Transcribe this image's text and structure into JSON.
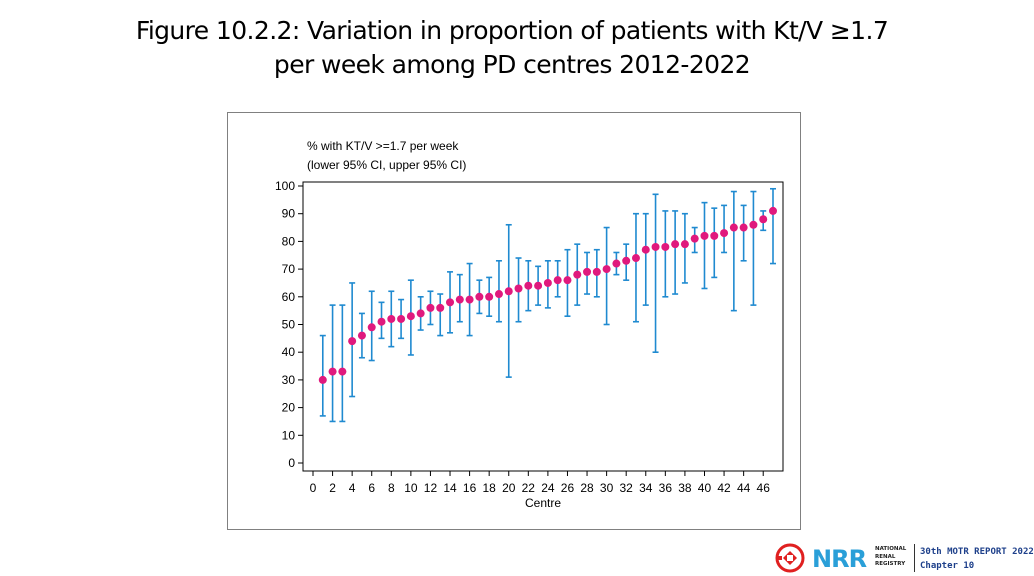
{
  "title": {
    "line1": "Figure 10.2.2: Variation in proportion of patients with Kt/V ≥1.7",
    "line2": "per week among PD centres 2012-2022"
  },
  "colors": {
    "point": "#e0197d",
    "ci": "#1f8ad0",
    "axis": "#000000",
    "frame": "#808080",
    "nrr_blue": "#2a9fd8",
    "nrr_red": "#e02020"
  },
  "footer": {
    "logo_text": "NRR",
    "logo_sub": [
      "NATIONAL",
      "RENAL",
      "REGISTRY"
    ],
    "report_line1": "30th MOTR REPORT 2022",
    "report_line2": "Chapter 10"
  },
  "chart_data": {
    "type": "scatter",
    "title": "",
    "ylabel_line1": "% with KT/V >=1.7 per week",
    "ylabel_line2": "(lower 95% CI, upper 95% CI)",
    "xlabel": "Centre",
    "xlim": [
      0,
      47
    ],
    "ylim": [
      0,
      100
    ],
    "x_ticks": [
      0,
      2,
      4,
      6,
      8,
      10,
      12,
      14,
      16,
      18,
      20,
      22,
      24,
      26,
      28,
      30,
      32,
      34,
      36,
      38,
      40,
      42,
      44,
      46
    ],
    "y_ticks": [
      0,
      10,
      20,
      30,
      40,
      50,
      60,
      70,
      80,
      90,
      100
    ],
    "x": [
      1,
      2,
      3,
      4,
      5,
      6,
      7,
      8,
      9,
      10,
      11,
      12,
      13,
      14,
      15,
      16,
      17,
      18,
      19,
      20,
      21,
      22,
      23,
      24,
      25,
      26,
      27,
      28,
      29,
      30,
      31,
      32,
      33,
      34,
      35,
      36,
      37,
      38,
      39,
      40,
      41,
      42,
      43,
      44,
      45,
      46,
      47
    ],
    "values": [
      30,
      33,
      33,
      44,
      46,
      49,
      51,
      52,
      52,
      53,
      54,
      56,
      56,
      58,
      59,
      59,
      60,
      60,
      61,
      62,
      63,
      64,
      64,
      65,
      66,
      66,
      68,
      69,
      69,
      70,
      72,
      73,
      74,
      77,
      78,
      78,
      79,
      79,
      81,
      82,
      82,
      83,
      85,
      85,
      86,
      88,
      91
    ],
    "lower": [
      17,
      15,
      15,
      24,
      38,
      37,
      45,
      42,
      45,
      39,
      48,
      50,
      46,
      47,
      51,
      46,
      54,
      53,
      51,
      31,
      51,
      55,
      57,
      56,
      60,
      53,
      57,
      61,
      60,
      50,
      68,
      66,
      51,
      57,
      40,
      60,
      61,
      65,
      76,
      63,
      67,
      76,
      55,
      73,
      57,
      84,
      72
    ],
    "upper": [
      46,
      57,
      57,
      65,
      54,
      62,
      58,
      62,
      59,
      66,
      60,
      62,
      61,
      69,
      68,
      72,
      66,
      67,
      73,
      86,
      74,
      73,
      71,
      73,
      73,
      77,
      79,
      76,
      77,
      85,
      76,
      79,
      90,
      90,
      97,
      91,
      91,
      90,
      85,
      94,
      92,
      93,
      98,
      93,
      98,
      91,
      99
    ]
  }
}
